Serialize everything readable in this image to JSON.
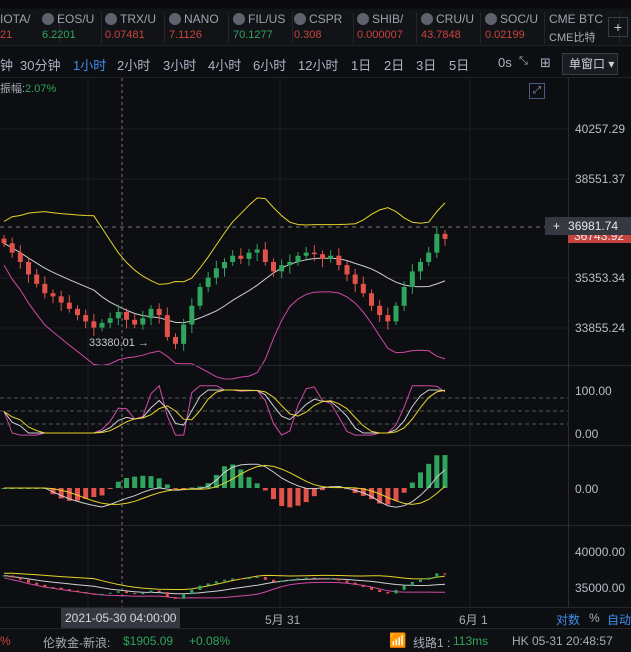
{
  "tickers": [
    {
      "name": "IOTA/",
      "price": "21",
      "dir": "down"
    },
    {
      "name": "EOS/U",
      "price": "6.2201",
      "dir": "up"
    },
    {
      "name": "TRX/U",
      "price": "0.07481",
      "dir": "down"
    },
    {
      "name": "NANO",
      "price": "7.1126",
      "dir": "down"
    },
    {
      "name": "FIL/US",
      "price": "70.1277",
      "dir": "up"
    },
    {
      "name": "CSPR",
      "price": "0.308",
      "dir": "down"
    },
    {
      "name": "SHIB/",
      "price": "0.000007",
      "dir": "down"
    },
    {
      "name": "CRU/U",
      "price": "43.7848",
      "dir": "down"
    },
    {
      "name": "SOC/U",
      "price": "0.02199",
      "dir": "down"
    },
    {
      "name": "CME BTC",
      "price": "CME比特",
      "dir": "none"
    }
  ],
  "add_label": "+",
  "timeframes": [
    "钟",
    "30分钟",
    "1小时",
    "2小时",
    "3小时",
    "4小时",
    "6小时",
    "12小时",
    "1日",
    "2日",
    "3日",
    "5日"
  ],
  "active_timeframe": "1小时",
  "countdown": "0s",
  "window_mode": "单窗口",
  "info": {
    "label": "振幅:",
    "value": "2.07%"
  },
  "price_axis": [
    "40257.29",
    "38551.37",
    "35353.34",
    "33855.24"
  ],
  "crosshair_price": "36981.74",
  "last_price": "36743.92",
  "low_marker": "33380.01",
  "osc_axis": [
    "100.00",
    "0.00"
  ],
  "macd_axis": [
    "0.00"
  ],
  "vol_axis": [
    "40000.00",
    "35000.00"
  ],
  "time_axis": {
    "crosshair": "2021-05-30 04:00:00",
    "labels": [
      "5月 31",
      "6月 1"
    ]
  },
  "axis_options": {
    "log": "对数",
    "pct": "%",
    "auto": "自动"
  },
  "status": {
    "left_pct": "%",
    "gold_label": "伦敦金-新浪:",
    "gold_price": "$1905.09",
    "gold_change": "+0.08%",
    "line_label": "线路1 :",
    "latency": "113ms",
    "clock": "HK 05-31 20:48:57"
  },
  "colors": {
    "up": "#2fa45c",
    "down": "#e0524a",
    "accent": "#3d8ee8"
  },
  "chart_data": {
    "type": "candlestick",
    "closes": [
      36600,
      36300,
      36000,
      35600,
      35300,
      35000,
      34900,
      34700,
      34500,
      34300,
      34100,
      33900,
      34050,
      34200,
      34400,
      34150,
      34000,
      34200,
      34500,
      34300,
      33600,
      33380,
      34000,
      34600,
      35200,
      35500,
      35800,
      36000,
      36200,
      36100,
      36300,
      36400,
      36000,
      35700,
      35900,
      36000,
      36200,
      36300,
      36250,
      36100,
      36200,
      35900,
      35600,
      35300,
      35000,
      34600,
      34300,
      34100,
      34600,
      35200,
      35700,
      36000,
      36300,
      36900,
      36740
    ]
  }
}
